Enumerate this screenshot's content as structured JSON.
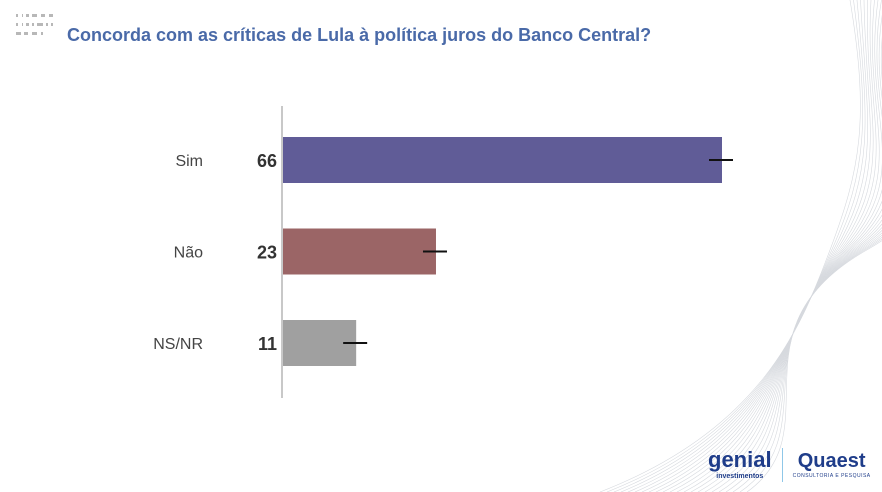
{
  "header": {
    "title": "Concorda com as críticas de Lula à política juros do Banco Central?"
  },
  "logos": {
    "genial": "genial",
    "genial_sub": "investimentos",
    "quaest": "Quaest",
    "quaest_sub": "CONSULTORIA E PESQUISA"
  },
  "chart_data": {
    "type": "bar",
    "orientation": "horizontal",
    "categories": [
      "Sim",
      "Não",
      "NS/NR"
    ],
    "values": [
      66,
      23,
      11
    ],
    "colors": [
      "#605c97",
      "#9b6566",
      "#a0a0a0"
    ],
    "error_bars": true,
    "xlim": [
      0,
      66
    ],
    "grid": false
  }
}
